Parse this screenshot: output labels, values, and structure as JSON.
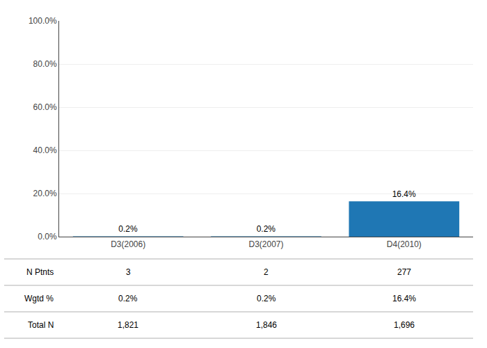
{
  "chart_data": {
    "type": "bar",
    "categories": [
      "D3(2006)",
      "D3(2007)",
      "D4(2010)"
    ],
    "values": [
      0.2,
      0.2,
      16.4
    ],
    "value_labels": [
      "0.2%",
      "0.2%",
      "16.4%"
    ],
    "data_labels": true,
    "ylim": [
      0,
      100
    ],
    "yticks": [
      {
        "value": 0,
        "label": "0.0%"
      },
      {
        "value": 20,
        "label": "20.0%"
      },
      {
        "value": 40,
        "label": "40.0%"
      },
      {
        "value": 60,
        "label": "60.0%"
      },
      {
        "value": 80,
        "label": "80.0%"
      },
      {
        "value": 100,
        "label": "100.0%"
      }
    ],
    "grid": true,
    "table": {
      "rows": [
        {
          "label": "N Ptnts",
          "cells": [
            "3",
            "2",
            "277"
          ]
        },
        {
          "label": "Wgtd %",
          "cells": [
            "0.2%",
            "0.2%",
            "16.4%"
          ]
        },
        {
          "label": "Total N",
          "cells": [
            "1,821",
            "1,846",
            "1,696"
          ]
        }
      ]
    }
  }
}
